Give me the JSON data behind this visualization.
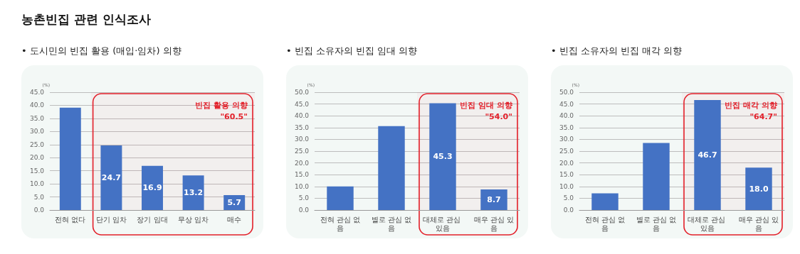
{
  "chart_data": [
    {
      "type": "bar",
      "title": "농촌빈집 관련 인식조사",
      "subtitle": "• 도시민의 빈집 활용 (매입·임차) 의향",
      "ylabel": "(%)",
      "categories": [
        "전혀 없다",
        "단기 임차",
        "장기 임대",
        "무상 임차",
        "매수"
      ],
      "values": [
        39.1,
        24.7,
        16.9,
        13.2,
        5.7
      ],
      "value_labels": [
        null,
        "24.7",
        "16.9",
        "13.2",
        "5.7"
      ],
      "color": "#4472c4",
      "ylim": [
        0,
        45
      ],
      "yticks": [
        {
          "value": 0,
          "label": "0.0"
        },
        {
          "value": 5,
          "label": "5.0"
        },
        {
          "value": 10,
          "label": "10.0"
        },
        {
          "value": 15,
          "label": "15.0"
        },
        {
          "value": 20,
          "label": "20.0"
        },
        {
          "value": 25,
          "label": "25.0"
        },
        {
          "value": 30,
          "label": "30.0"
        },
        {
          "value": 35,
          "label": "35.0"
        },
        {
          "value": 40,
          "label": "40.0"
        },
        {
          "value": 45,
          "label": "45.0"
        }
      ],
      "grid": "y",
      "bands": [
        {
          "axis": "x",
          "from": "단기 임차",
          "to": "매수",
          "label": "빈집 활용 의향 \"60.5\"",
          "color": "#e3202a"
        }
      ]
    },
    {
      "type": "bar",
      "subtitle": "• 빈집 소유자의 빈집 임대 의향",
      "ylabel": "(%)",
      "categories": [
        "전혀 관심 없음",
        "별로 관심 없음",
        "대체로 관심 있음",
        "매우 관심 있음"
      ],
      "values": [
        10.0,
        35.6,
        45.3,
        8.7
      ],
      "value_labels": [
        null,
        null,
        "45.3",
        "8.7"
      ],
      "color": "#4472c4",
      "ylim": [
        0,
        50
      ],
      "yticks": [
        {
          "value": 0,
          "label": "0.0"
        },
        {
          "value": 5,
          "label": "5.0"
        },
        {
          "value": 10,
          "label": "10.0"
        },
        {
          "value": 15,
          "label": "15.0"
        },
        {
          "value": 20,
          "label": "20.0"
        },
        {
          "value": 25,
          "label": "25.0"
        },
        {
          "value": 30,
          "label": "30.0"
        },
        {
          "value": 35,
          "label": "35.0"
        },
        {
          "value": 40,
          "label": "40.0"
        },
        {
          "value": 45,
          "label": "45.0"
        },
        {
          "value": 50,
          "label": "50.0"
        }
      ],
      "grid": "y",
      "bands": [
        {
          "axis": "x",
          "from": "대체로 관심 있음",
          "to": "매우 관심 있음",
          "label": "빈집 임대 의향 \"54.0\"",
          "color": "#e3202a"
        }
      ]
    },
    {
      "type": "bar",
      "subtitle": "• 빈집 소유자의 빈집 매각 의향",
      "ylabel": "(%)",
      "categories": [
        "전혀 관심 없음",
        "별로 관심 없음",
        "대체로 관심 있음",
        "매우 관심 있음"
      ],
      "values": [
        7.1,
        28.5,
        46.7,
        18.0
      ],
      "value_labels": [
        null,
        null,
        "46.7",
        "18.0"
      ],
      "color": "#4472c4",
      "ylim": [
        0,
        50
      ],
      "yticks": [
        {
          "value": 0,
          "label": "0.0"
        },
        {
          "value": 5,
          "label": "5.0"
        },
        {
          "value": 10,
          "label": "10.0"
        },
        {
          "value": 15,
          "label": "15.0"
        },
        {
          "value": 20,
          "label": "20.0"
        },
        {
          "value": 25,
          "label": "25.0"
        },
        {
          "value": 30,
          "label": "30.0"
        },
        {
          "value": 35,
          "label": "35.0"
        },
        {
          "value": 40,
          "label": "40.0"
        },
        {
          "value": 45,
          "label": "45.0"
        },
        {
          "value": 50,
          "label": "50.0"
        }
      ],
      "grid": "y",
      "bands": [
        {
          "axis": "x",
          "from": "대체로 관심 있음",
          "to": "매우 관심 있음",
          "label": "빈집 매각 의향 \"64.7\"",
          "color": "#e3202a"
        }
      ]
    }
  ]
}
